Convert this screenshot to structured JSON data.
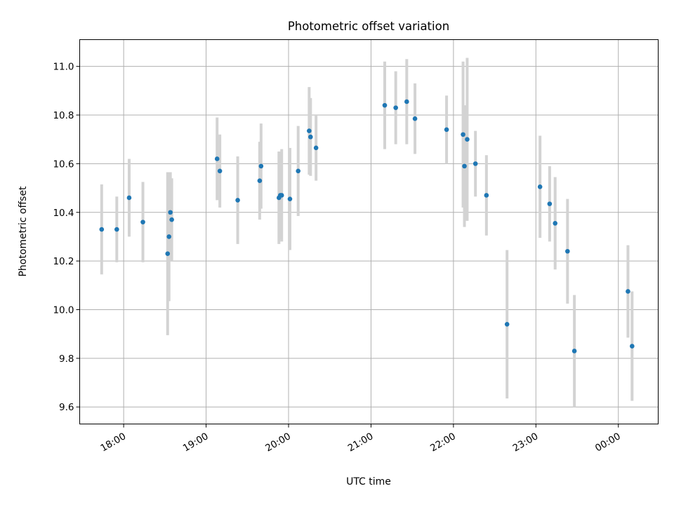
{
  "chart_data": {
    "type": "scatter",
    "title": "Photometric offset variation",
    "xlabel": "UTC time",
    "ylabel": "Photometric offset",
    "x_axis": {
      "kind": "time",
      "range": [
        "17:28",
        "00:29"
      ],
      "ticks": [
        {
          "t": "18:00",
          "label": "18:00"
        },
        {
          "t": "19:00",
          "label": "19:00"
        },
        {
          "t": "20:00",
          "label": "20:00"
        },
        {
          "t": "21:00",
          "label": "21:00"
        },
        {
          "t": "22:00",
          "label": "22:00"
        },
        {
          "t": "23:00",
          "label": "23:00"
        },
        {
          "t": "00:00",
          "label": "00:00"
        }
      ]
    },
    "y_axis": {
      "range": [
        9.53,
        11.11
      ],
      "ticks": [
        9.6,
        9.8,
        10.0,
        10.2,
        10.4,
        10.6,
        10.8,
        11.0
      ],
      "tick_labels": [
        "9.6",
        "9.8",
        "10.0",
        "10.2",
        "10.4",
        "10.6",
        "10.8",
        "11.0"
      ]
    },
    "grid": true,
    "marker_color": "#1f77b4",
    "errorbar_color": "#d3d3d3",
    "points": [
      {
        "t": "17:44",
        "y": 10.33,
        "err": 0.185
      },
      {
        "t": "17:55",
        "y": 10.33,
        "err": 0.135
      },
      {
        "t": "18:04",
        "y": 10.46,
        "err": 0.16
      },
      {
        "t": "18:14",
        "y": 10.36,
        "err": 0.165
      },
      {
        "t": "18:32",
        "y": 10.23,
        "err": 0.335
      },
      {
        "t": "18:33",
        "y": 10.3,
        "err": 0.265
      },
      {
        "t": "18:34",
        "y": 10.4,
        "err": 0.165
      },
      {
        "t": "18:35",
        "y": 10.37,
        "err": 0.17
      },
      {
        "t": "19:08",
        "y": 10.62,
        "err": 0.17
      },
      {
        "t": "19:10",
        "y": 10.57,
        "err": 0.15
      },
      {
        "t": "19:23",
        "y": 10.45,
        "err": 0.18
      },
      {
        "t": "19:39",
        "y": 10.53,
        "err": 0.16
      },
      {
        "t": "19:40",
        "y": 10.59,
        "err": 0.175
      },
      {
        "t": "19:53",
        "y": 10.46,
        "err": 0.19
      },
      {
        "t": "19:54",
        "y": 10.47,
        "err": 0.18
      },
      {
        "t": "19:55",
        "y": 10.47,
        "err": 0.19
      },
      {
        "t": "20:01",
        "y": 10.455,
        "err": 0.21
      },
      {
        "t": "20:07",
        "y": 10.57,
        "err": 0.185
      },
      {
        "t": "20:15",
        "y": 10.735,
        "err": 0.18
      },
      {
        "t": "20:16",
        "y": 10.71,
        "err": 0.16
      },
      {
        "t": "20:20",
        "y": 10.665,
        "err": 0.135
      },
      {
        "t": "21:10",
        "y": 10.84,
        "err": 0.18
      },
      {
        "t": "21:18",
        "y": 10.83,
        "err": 0.15
      },
      {
        "t": "21:26",
        "y": 10.855,
        "err": 0.175
      },
      {
        "t": "21:32",
        "y": 10.785,
        "err": 0.145
      },
      {
        "t": "21:55",
        "y": 10.74,
        "err": 0.14
      },
      {
        "t": "22:07",
        "y": 10.72,
        "err": 0.3
      },
      {
        "t": "22:08",
        "y": 10.59,
        "err": 0.25
      },
      {
        "t": "22:10",
        "y": 10.7,
        "err": 0.335
      },
      {
        "t": "22:16",
        "y": 10.6,
        "err": 0.135
      },
      {
        "t": "22:24",
        "y": 10.47,
        "err": 0.165
      },
      {
        "t": "22:39",
        "y": 9.94,
        "err": 0.305
      },
      {
        "t": "23:03",
        "y": 10.505,
        "err": 0.21
      },
      {
        "t": "23:10",
        "y": 10.435,
        "err": 0.155
      },
      {
        "t": "23:14",
        "y": 10.355,
        "err": 0.19
      },
      {
        "t": "23:23",
        "y": 10.24,
        "err": 0.215
      },
      {
        "t": "23:28",
        "y": 9.83,
        "err": 0.23
      },
      {
        "t": "00:07",
        "y": 10.075,
        "err": 0.19
      },
      {
        "t": "00:10",
        "y": 9.85,
        "err": 0.225
      }
    ]
  }
}
